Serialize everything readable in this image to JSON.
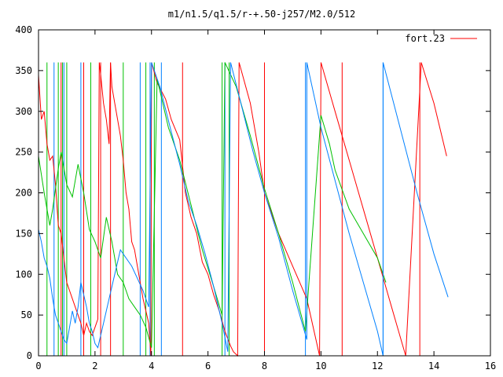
{
  "chart_data": {
    "type": "line",
    "title": "m1/n1.5/q1.5/r-+.50-j257/M2.0/512",
    "xlabel": "",
    "ylabel": "",
    "xlim": [
      0,
      16
    ],
    "ylim": [
      0,
      400
    ],
    "x_ticks": [
      "0",
      "2",
      "4",
      "6",
      "8",
      "10",
      "12",
      "14",
      "16"
    ],
    "y_ticks": [
      "0",
      "50",
      "100",
      "150",
      "200",
      "250",
      "300",
      "350",
      "400"
    ],
    "grid": false,
    "legend_position": "top-right",
    "colors": {
      "red": "#ff0000",
      "green": "#00c000",
      "blue": "#0080ff"
    },
    "series": [
      {
        "name": "fort.23",
        "color": "#ff0000",
        "points": [
          [
            0.0,
            345
          ],
          [
            0.1,
            290
          ],
          [
            0.2,
            300
          ],
          [
            0.3,
            260
          ],
          [
            0.4,
            240
          ],
          [
            0.5,
            245
          ],
          [
            0.6,
            210
          ],
          [
            0.7,
            160
          ],
          [
            0.8,
            150
          ],
          [
            0.9,
            120
          ],
          [
            1.0,
            90
          ],
          [
            1.1,
            80
          ],
          [
            1.2,
            70
          ],
          [
            1.3,
            60
          ],
          [
            1.4,
            50
          ],
          [
            1.5,
            40
          ],
          [
            1.6,
            25
          ],
          [
            1.7,
            40
          ],
          [
            1.8,
            30
          ],
          [
            1.9,
            25
          ],
          [
            2.0,
            35
          ],
          [
            2.1,
            45
          ],
          [
            2.15,
            360
          ],
          [
            2.2,
            345
          ],
          [
            2.3,
            310
          ],
          [
            2.4,
            290
          ],
          [
            2.5,
            260
          ],
          [
            2.55,
            360
          ],
          [
            2.6,
            330
          ],
          [
            2.7,
            310
          ],
          [
            2.8,
            290
          ],
          [
            2.9,
            270
          ],
          [
            3.0,
            240
          ],
          [
            3.1,
            200
          ],
          [
            3.2,
            180
          ],
          [
            3.3,
            140
          ],
          [
            3.4,
            130
          ],
          [
            3.5,
            110
          ],
          [
            3.6,
            90
          ],
          [
            3.7,
            70
          ],
          [
            3.8,
            55
          ],
          [
            3.9,
            40
          ],
          [
            3.98,
            0
          ],
          [
            4.0,
            360
          ],
          [
            4.2,
            335
          ],
          [
            4.5,
            315
          ],
          [
            4.7,
            290
          ],
          [
            5.0,
            265
          ],
          [
            5.2,
            200
          ],
          [
            5.4,
            170
          ],
          [
            5.6,
            150
          ],
          [
            5.8,
            115
          ],
          [
            6.0,
            100
          ],
          [
            6.2,
            75
          ],
          [
            6.4,
            55
          ],
          [
            6.6,
            30
          ],
          [
            6.8,
            12
          ],
          [
            6.9,
            5
          ],
          [
            7.05,
            0
          ],
          [
            7.1,
            360
          ],
          [
            7.5,
            310
          ],
          [
            7.8,
            250
          ],
          [
            8.0,
            200
          ],
          [
            8.5,
            150
          ],
          [
            9.0,
            110
          ],
          [
            9.5,
            70
          ],
          [
            9.95,
            0
          ],
          [
            10.0,
            360
          ],
          [
            10.5,
            300
          ],
          [
            11.0,
            240
          ],
          [
            11.5,
            180
          ],
          [
            12.0,
            120
          ],
          [
            12.5,
            60
          ],
          [
            13.0,
            0
          ],
          [
            13.55,
            360
          ],
          [
            14.0,
            310
          ],
          [
            14.45,
            245
          ]
        ]
      },
      {
        "name": "",
        "color": "#00c000",
        "points": [
          [
            0.0,
            245
          ],
          [
            0.2,
            200
          ],
          [
            0.4,
            160
          ],
          [
            0.5,
            180
          ],
          [
            0.7,
            230
          ],
          [
            0.8,
            250
          ],
          [
            1.0,
            210
          ],
          [
            1.2,
            195
          ],
          [
            1.4,
            235
          ],
          [
            1.6,
            200
          ],
          [
            1.8,
            155
          ],
          [
            2.0,
            140
          ],
          [
            2.2,
            120
          ],
          [
            2.4,
            170
          ],
          [
            2.6,
            140
          ],
          [
            2.8,
            100
          ],
          [
            3.0,
            90
          ],
          [
            3.2,
            70
          ],
          [
            3.4,
            60
          ],
          [
            3.6,
            50
          ],
          [
            3.8,
            35
          ],
          [
            4.0,
            10
          ],
          [
            4.2,
            340
          ],
          [
            4.6,
            280
          ],
          [
            5.0,
            240
          ],
          [
            5.4,
            185
          ],
          [
            5.8,
            130
          ],
          [
            6.2,
            85
          ],
          [
            6.5,
            50
          ],
          [
            6.6,
            360
          ],
          [
            7.0,
            330
          ],
          [
            7.5,
            270
          ],
          [
            8.0,
            205
          ],
          [
            8.5,
            150
          ],
          [
            9.0,
            90
          ],
          [
            9.45,
            30
          ],
          [
            10.0,
            295
          ],
          [
            10.3,
            260
          ],
          [
            10.5,
            228
          ],
          [
            11.0,
            180
          ],
          [
            11.5,
            150
          ],
          [
            12.0,
            120
          ],
          [
            12.3,
            90
          ]
        ]
      },
      {
        "name": "",
        "color": "#0080ff",
        "points": [
          [
            0.0,
            155
          ],
          [
            0.1,
            140
          ],
          [
            0.2,
            120
          ],
          [
            0.3,
            110
          ],
          [
            0.4,
            95
          ],
          [
            0.5,
            70
          ],
          [
            0.6,
            50
          ],
          [
            0.7,
            40
          ],
          [
            0.8,
            30
          ],
          [
            0.9,
            20
          ],
          [
            1.0,
            15
          ],
          [
            1.1,
            35
          ],
          [
            1.2,
            55
          ],
          [
            1.3,
            40
          ],
          [
            1.4,
            60
          ],
          [
            1.5,
            90
          ],
          [
            1.6,
            75
          ],
          [
            1.7,
            60
          ],
          [
            1.8,
            40
          ],
          [
            1.9,
            30
          ],
          [
            2.0,
            15
          ],
          [
            2.1,
            10
          ],
          [
            2.3,
            40
          ],
          [
            2.5,
            70
          ],
          [
            2.7,
            100
          ],
          [
            2.9,
            130
          ],
          [
            3.1,
            120
          ],
          [
            3.3,
            110
          ],
          [
            3.5,
            95
          ],
          [
            3.7,
            80
          ],
          [
            3.9,
            60
          ],
          [
            4.0,
            360
          ],
          [
            4.3,
            330
          ],
          [
            4.7,
            275
          ],
          [
            5.0,
            235
          ],
          [
            5.3,
            190
          ],
          [
            5.6,
            160
          ],
          [
            5.9,
            125
          ],
          [
            6.2,
            85
          ],
          [
            6.5,
            40
          ],
          [
            6.7,
            5
          ],
          [
            6.8,
            360
          ],
          [
            7.2,
            305
          ],
          [
            7.6,
            250
          ],
          [
            8.0,
            200
          ],
          [
            8.5,
            145
          ],
          [
            9.0,
            80
          ],
          [
            9.5,
            20
          ],
          [
            9.5,
            360
          ],
          [
            10.0,
            280
          ],
          [
            10.5,
            215
          ],
          [
            11.0,
            150
          ],
          [
            11.5,
            90
          ],
          [
            12.0,
            30
          ],
          [
            12.2,
            0
          ],
          [
            12.2,
            360
          ],
          [
            12.8,
            280
          ],
          [
            13.4,
            200
          ],
          [
            14.0,
            125
          ],
          [
            14.5,
            72
          ]
        ]
      }
    ],
    "vertical_lines": [
      {
        "x": 0.3,
        "color": "#00c000"
      },
      {
        "x": 0.55,
        "color": "#0080ff"
      },
      {
        "x": 0.7,
        "color": "#00c000"
      },
      {
        "x": 0.8,
        "color": "#ff0000"
      },
      {
        "x": 0.85,
        "color": "#00c000"
      },
      {
        "x": 0.9,
        "color": "#0080ff"
      },
      {
        "x": 1.0,
        "color": "#00c000"
      },
      {
        "x": 1.5,
        "color": "#0080ff"
      },
      {
        "x": 1.6,
        "color": "#ff0000"
      },
      {
        "x": 1.85,
        "color": "#00c000"
      },
      {
        "x": 2.2,
        "color": "#ff0000"
      },
      {
        "x": 2.55,
        "color": "#ff0000"
      },
      {
        "x": 3.0,
        "color": "#00c000"
      },
      {
        "x": 3.6,
        "color": "#0080ff"
      },
      {
        "x": 3.8,
        "color": "#00c000"
      },
      {
        "x": 3.95,
        "color": "#0080ff"
      },
      {
        "x": 4.1,
        "color": "#00c000"
      },
      {
        "x": 4.35,
        "color": "#0080ff"
      },
      {
        "x": 5.1,
        "color": "#ff0000"
      },
      {
        "x": 6.5,
        "color": "#00c000"
      },
      {
        "x": 6.6,
        "color": "#0080ff"
      },
      {
        "x": 6.75,
        "color": "#00c000"
      },
      {
        "x": 8.0,
        "color": "#ff0000"
      },
      {
        "x": 9.45,
        "color": "#0080ff"
      },
      {
        "x": 10.75,
        "color": "#ff0000"
      },
      {
        "x": 12.2,
        "color": "#0080ff"
      },
      {
        "x": 13.5,
        "color": "#ff0000"
      }
    ]
  }
}
